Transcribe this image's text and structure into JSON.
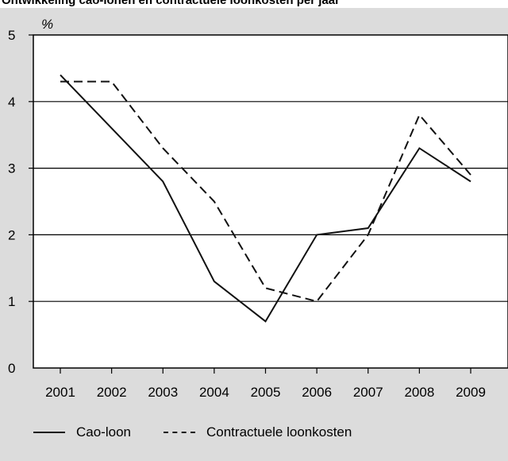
{
  "header": {
    "title": "Ontwikkeling cao-lonen en contractuele loonkosten per jaar"
  },
  "chart_data": {
    "type": "line",
    "title": "Ontwikkeling cao-lonen en contractuele loonkosten per jaar",
    "xlabel": "",
    "ylabel": "%",
    "x": [
      "2001",
      "2002",
      "2003",
      "2004",
      "2005",
      "2006",
      "2007",
      "2008",
      "2009"
    ],
    "ylim": [
      0,
      5
    ],
    "yticks": [
      "0",
      "1",
      "2",
      "3",
      "4",
      "5"
    ],
    "grid": true,
    "legend_position": "bottom",
    "series": [
      {
        "name": "Cao-loon",
        "style": "solid",
        "values": [
          4.4,
          3.6,
          2.8,
          1.3,
          0.7,
          2.0,
          2.1,
          3.3,
          2.8
        ]
      },
      {
        "name": "Contractuele loonkosten",
        "style": "dashed",
        "values": [
          4.3,
          4.3,
          3.3,
          2.5,
          1.2,
          1.0,
          2.0,
          3.8,
          2.9
        ]
      }
    ]
  },
  "colors": {
    "figure_background": "#dcdcdc",
    "plot_background": "#ffffff",
    "line": "#111111",
    "grid": "#000000"
  }
}
